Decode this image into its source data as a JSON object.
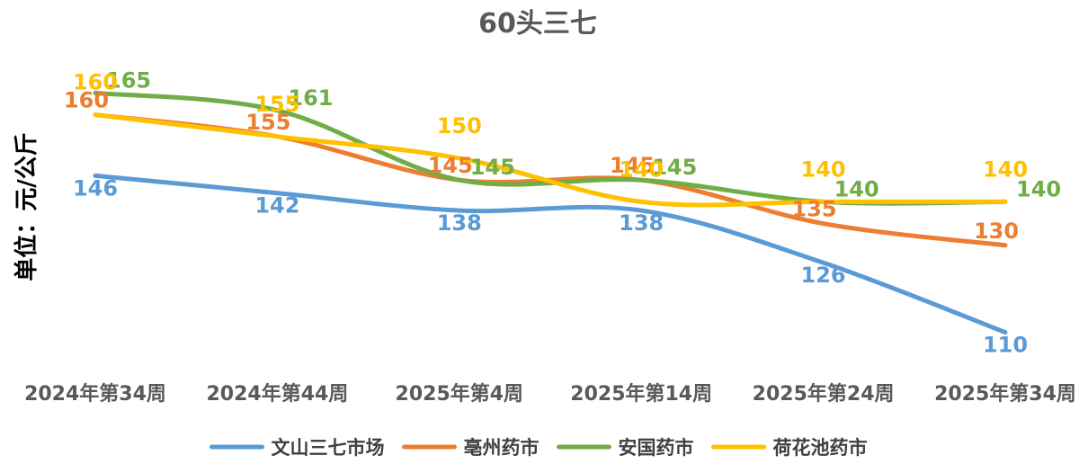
{
  "chart_data": {
    "type": "line",
    "title": "60头三七",
    "ylabel": "单位：元/公斤",
    "xlabel": "",
    "categories": [
      "2024年第34周",
      "2024年第44周",
      "2025年第4周",
      "2025年第14周",
      "2025年第24周",
      "2025年第34周"
    ],
    "ylim": [
      100,
      175
    ],
    "grid": false,
    "legend_position": "bottom",
    "smooth": true,
    "series": [
      {
        "name": "文山三七市场",
        "color": "#5B9BD5",
        "values": [
          146,
          142,
          138,
          138,
          126,
          110
        ]
      },
      {
        "name": "亳州药市",
        "color": "#ED7D31",
        "values": [
          160,
          155,
          145,
          145,
          135,
          130
        ]
      },
      {
        "name": "安国药市",
        "color": "#70AD47",
        "values": [
          165,
          161,
          145,
          145,
          140,
          140
        ]
      },
      {
        "name": "荷花池药市",
        "color": "#FFC000",
        "values": [
          160,
          155,
          150,
          140,
          140,
          140
        ]
      }
    ]
  }
}
